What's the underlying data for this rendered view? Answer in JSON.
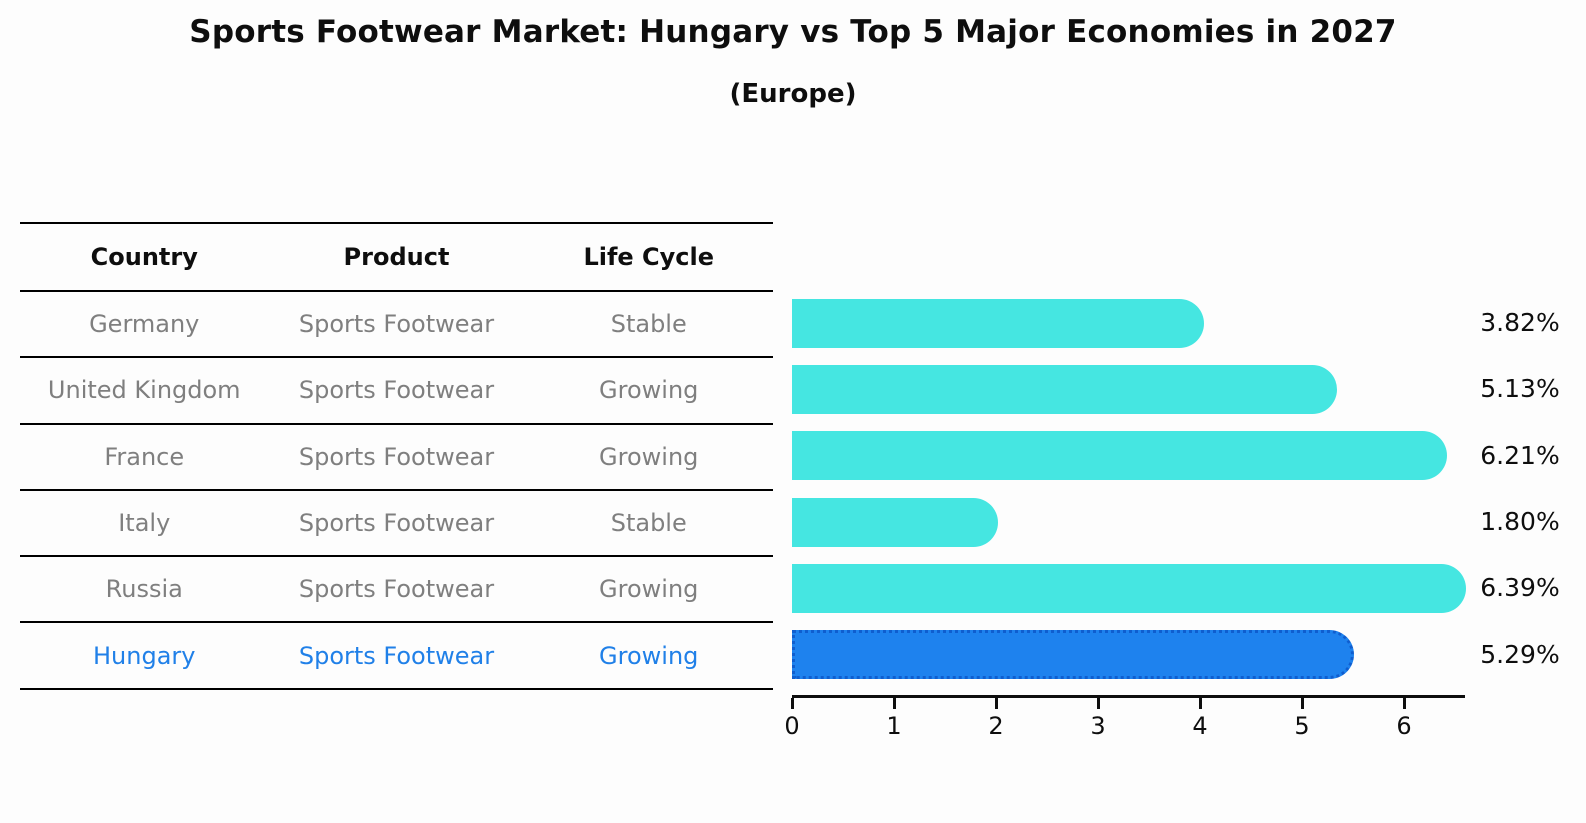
{
  "page": {
    "title": "Sports Footwear Market: Hungary vs Top 5 Major Economies in 2027",
    "subtitle": "(Europe)"
  },
  "table": {
    "headers": [
      "Country",
      "Product",
      "Life Cycle"
    ],
    "rows": [
      {
        "country": "Germany",
        "product": "Sports Footwear",
        "life_cycle": "Stable",
        "highlighted": false
      },
      {
        "country": "United Kingdom",
        "product": "Sports Footwear",
        "life_cycle": "Growing",
        "highlighted": false
      },
      {
        "country": "France",
        "product": "Sports Footwear",
        "life_cycle": "Growing",
        "highlighted": false
      },
      {
        "country": "Italy",
        "product": "Sports Footwear",
        "life_cycle": "Stable",
        "highlighted": false
      },
      {
        "country": "Russia",
        "product": "Sports Footwear",
        "life_cycle": "Growing",
        "highlighted": false
      },
      {
        "country": "Hungary",
        "product": "Sports Footwear",
        "life_cycle": "Growing",
        "highlighted": true
      }
    ]
  },
  "chart_data": {
    "type": "bar",
    "orientation": "horizontal",
    "title": "Sports Footwear Market: Hungary vs Top 5 Major Economies in 2027",
    "subtitle": "(Europe)",
    "categories": [
      "Germany",
      "United Kingdom",
      "France",
      "Italy",
      "Russia",
      "Hungary"
    ],
    "values": [
      3.82,
      5.13,
      6.21,
      1.8,
      6.39,
      5.29
    ],
    "value_labels": [
      "3.82%",
      "5.13%",
      "6.21%",
      "1.80%",
      "6.39%",
      "5.29%"
    ],
    "highlight_index": 5,
    "xlabel": "",
    "ylabel": "",
    "xlim": [
      0,
      6.5
    ],
    "xticks": [
      0,
      1,
      2,
      3,
      4,
      5,
      6
    ],
    "grid": false,
    "legend": false,
    "colors": {
      "bar_default": "#45e6e1",
      "bar_highlight": "#1e82ee",
      "bar_highlight_edge": "#0f5ecf",
      "highlight_text": "#2080e8",
      "table_text": "#7f7f7f",
      "axis_text": "#0e0e0e"
    }
  }
}
